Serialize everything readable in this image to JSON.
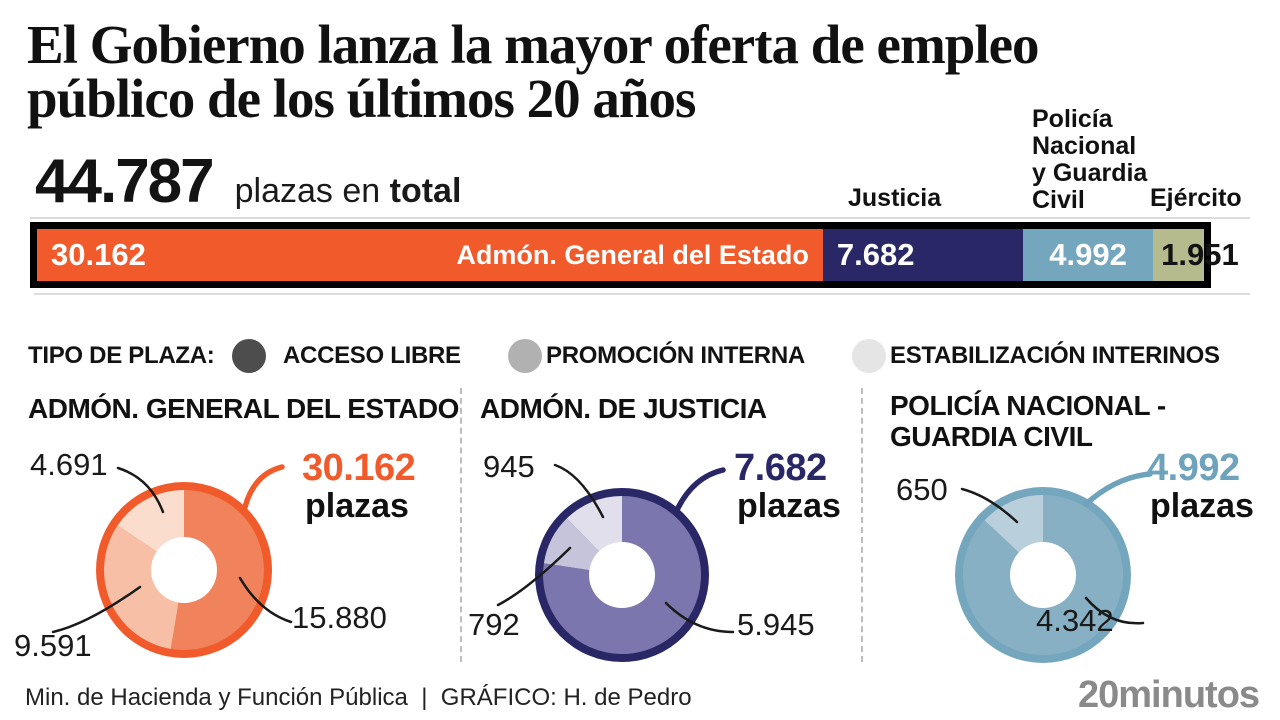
{
  "title": {
    "line1": "El Gobierno lanza la mayor oferta de empleo",
    "line2": "público de los últimos 20 años"
  },
  "total": {
    "value": "44.787",
    "unit": "plazas en",
    "unit_bold": "total"
  },
  "bar": {
    "total_value": 44787,
    "column_labels": [
      "Justicia",
      "Policía Nacional y Guardia Civil",
      "Ejército"
    ],
    "segments": [
      {
        "name": "Admón. General del Estado",
        "value": 30162,
        "value_label": "30.162",
        "color": "#F15B2B",
        "text_color": "#ffffff",
        "name_inside": true
      },
      {
        "name": "Justicia",
        "value": 7682,
        "value_label": "7.682",
        "color": "#2A2767",
        "text_color": "#ffffff",
        "name_inside": false
      },
      {
        "name": "Policía Nacional y Guardia Civil",
        "value": 4992,
        "value_label": "4.992",
        "color": "#74A6BE",
        "text_color": "#ffffff",
        "name_inside": false
      },
      {
        "name": "Ejército",
        "value": 1951,
        "value_label": "1.951",
        "color": "#B6BB8D",
        "text_color": "#131313",
        "name_inside": false
      }
    ]
  },
  "legend": {
    "title": "TIPO DE PLAZA:",
    "items": [
      {
        "label": "ACCESO LIBRE",
        "color": "#4D4D4D"
      },
      {
        "label": "PROMOCIÓN INTERNA",
        "color": "#B1B1B1"
      },
      {
        "label": "ESTABILIZACIÓN INTERINOS",
        "color": "#E5E5E5"
      }
    ]
  },
  "donuts": [
    {
      "title": "ADMÓN. GENERAL DEL ESTADO",
      "total_label": "30.162",
      "total_word": "plazas",
      "accent": "#F15B2B",
      "ring_color": "#F15B2B",
      "segments": [
        {
          "type": "Acceso libre",
          "value": 15880,
          "label": "15.880",
          "color": "#F0835C"
        },
        {
          "type": "Promoción interna",
          "value": 9591,
          "label": "9.591",
          "color": "#F7C0A6"
        },
        {
          "type": "Estabilización interinos",
          "value": 4691,
          "label": "4.691",
          "color": "#FBDDCD"
        }
      ]
    },
    {
      "title": "ADMÓN. DE JUSTICIA",
      "total_label": "7.682",
      "total_word": "plazas",
      "accent": "#2A2767",
      "ring_color": "#2A2767",
      "segments": [
        {
          "type": "Acceso libre",
          "value": 5945,
          "label": "5.945",
          "color": "#7B77AE"
        },
        {
          "type": "Promoción interna",
          "value": 792,
          "label": "792",
          "color": "#C6C4DA"
        },
        {
          "type": "Estabilización interinos",
          "value": 945,
          "label": "945",
          "color": "#E0DFEB"
        }
      ]
    },
    {
      "title": "POLICÍA NACIONAL - GUARDIA CIVIL",
      "total_label": "4.992",
      "total_word": "plazas",
      "accent": "#6FA3BC",
      "ring_color": "#74A6BE",
      "segments": [
        {
          "type": "Acceso libre",
          "value": 4342,
          "label": "4.342",
          "color": "#88B0C4"
        },
        {
          "type": "Promoción interna",
          "value": 650,
          "label": "650",
          "color": "#B9D0DC"
        }
      ]
    }
  ],
  "footer": {
    "source": "Min. de Hacienda y Función Pública",
    "separator": "|",
    "credit": "GRÁFICO: H. de Pedro",
    "brand": "20minutos"
  },
  "chart_data": [
    {
      "type": "bar",
      "subtype": "horizontal-stacked",
      "title": "44.787 plazas en total",
      "categories": [
        "Admón. General del Estado",
        "Justicia",
        "Policía Nacional y Guardia Civil",
        "Ejército"
      ],
      "values": [
        30162,
        7682,
        4992,
        1951
      ],
      "colors": [
        "#F15B2B",
        "#2A2767",
        "#74A6BE",
        "#B6BB8D"
      ],
      "total": 44787
    },
    {
      "type": "pie",
      "title": "ADMÓN. GENERAL DEL ESTADO",
      "total": 30162,
      "slices": [
        {
          "label": "Acceso libre",
          "value": 15880
        },
        {
          "label": "Promoción interna",
          "value": 9591
        },
        {
          "label": "Estabilización interinos",
          "value": 4691
        }
      ]
    },
    {
      "type": "pie",
      "title": "ADMÓN. DE JUSTICIA",
      "total": 7682,
      "slices": [
        {
          "label": "Acceso libre",
          "value": 5945
        },
        {
          "label": "Promoción interna",
          "value": 792
        },
        {
          "label": "Estabilización interinos",
          "value": 945
        }
      ]
    },
    {
      "type": "pie",
      "title": "POLICÍA NACIONAL - GUARDIA CIVIL",
      "total": 4992,
      "slices": [
        {
          "label": "Acceso libre",
          "value": 4342
        },
        {
          "label": "Promoción interna",
          "value": 650
        }
      ]
    }
  ]
}
